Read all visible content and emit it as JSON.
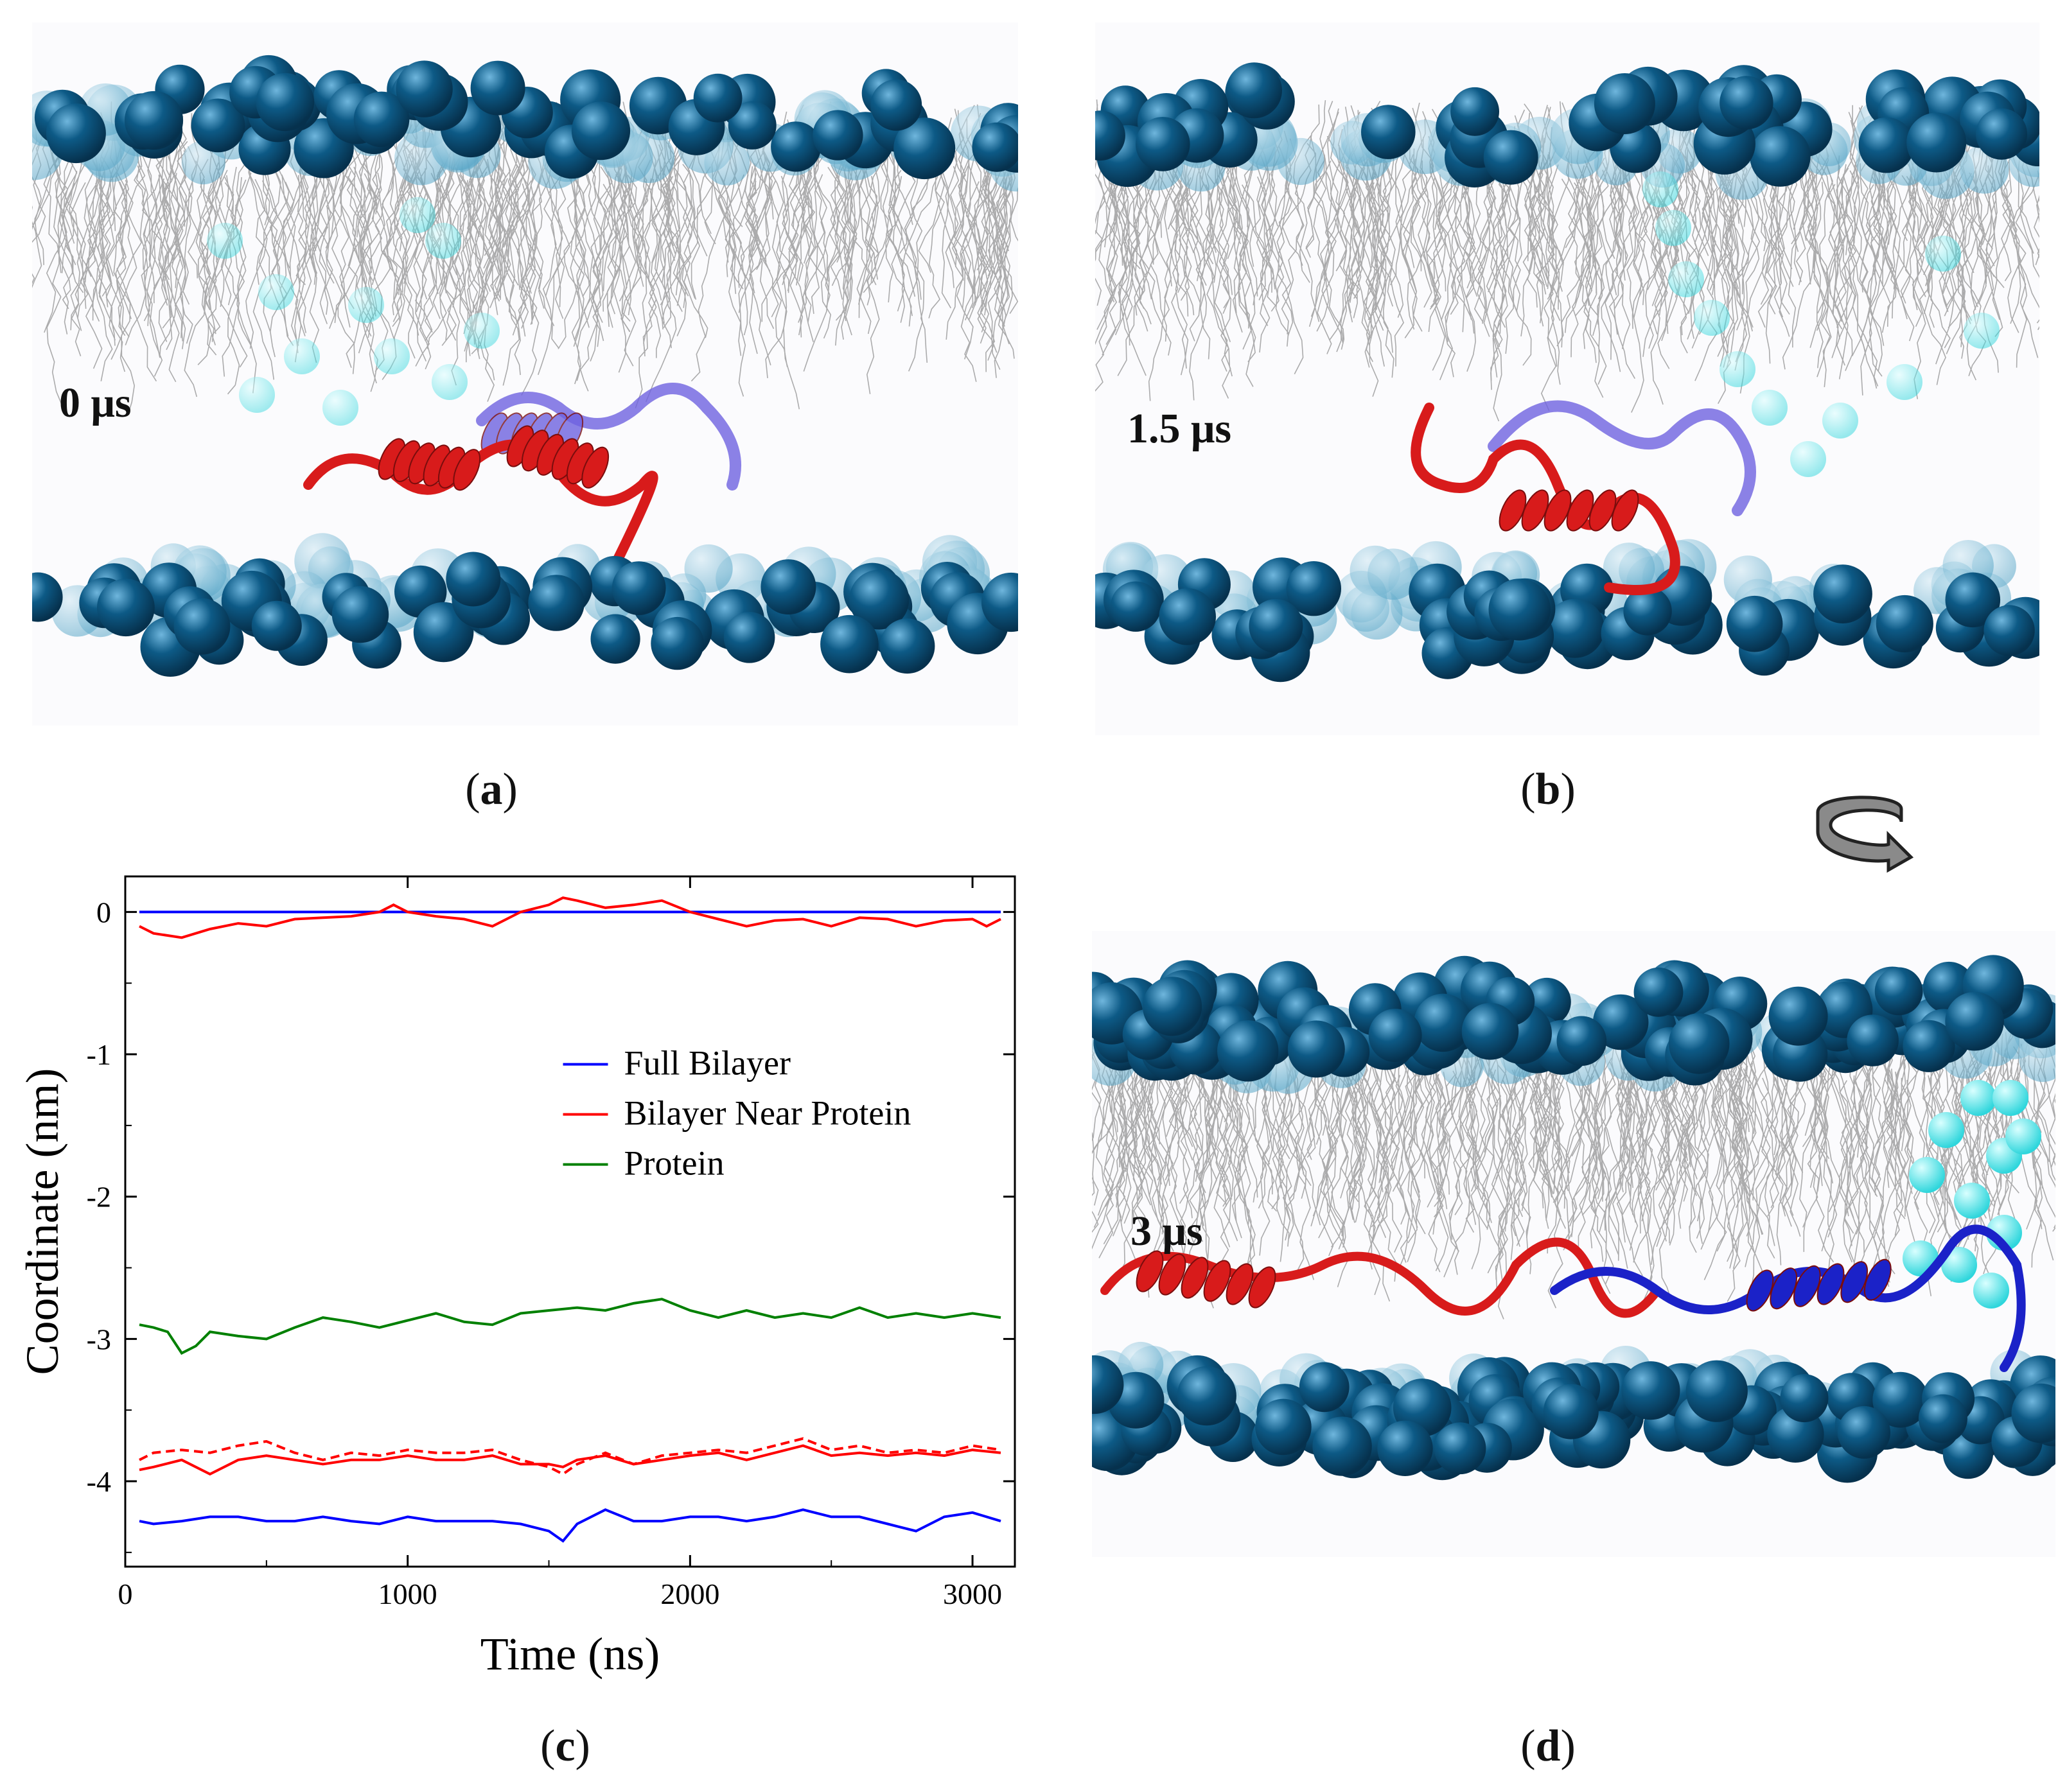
{
  "panels": {
    "a": {
      "caption_open": "(",
      "caption_letter": "a",
      "caption_close": ")",
      "time_label": "0 μs"
    },
    "b": {
      "caption_open": "(",
      "caption_letter": "b",
      "caption_close": ")",
      "time_label": "1.5 μs"
    },
    "c": {
      "caption_open": "(",
      "caption_letter": "c",
      "caption_close": ")"
    },
    "d": {
      "caption_open": "(",
      "caption_letter": "d",
      "caption_close": ")",
      "time_label": "3 μs"
    }
  },
  "colors": {
    "head_dark": "#0d5a86",
    "head_light": "#5aa7c8",
    "water": "#2fd6dc",
    "protein_red": "#d81b1b",
    "protein_blue": "#1b22c8",
    "protein_blue_light": "#6f63e0",
    "lipid_tail": "#8a8a8a"
  },
  "chart_data": {
    "type": "line",
    "xlabel": "Time (ns)",
    "ylabel": "Coordinate (nm)",
    "xlim": [
      0,
      3150
    ],
    "ylim": [
      -4.6,
      0.25
    ],
    "xticks": [
      0,
      1000,
      2000,
      3000
    ],
    "yticks": [
      0,
      -1,
      -2,
      -3,
      -4
    ],
    "xtick_labels": [
      "0",
      "1000",
      "2000",
      "3000"
    ],
    "ytick_labels": [
      "0",
      "-1",
      "-2",
      "-3",
      "-4"
    ],
    "legend_position": "center-right",
    "legend": [
      {
        "label": "Full Bilayer",
        "color": "#0000ff"
      },
      {
        "label": "Bilayer Near Protein",
        "color": "#ff0000"
      },
      {
        "label": "Protein",
        "color": "#008000"
      }
    ],
    "series": [
      {
        "name": "Full Bilayer",
        "color": "#0000ff",
        "style": "solid",
        "x": [
          50,
          3100
        ],
        "y": [
          0,
          0
        ]
      },
      {
        "name": "Bilayer Near Protein",
        "color": "#ff0000",
        "style": "solid",
        "x": [
          50,
          100,
          200,
          300,
          400,
          500,
          600,
          700,
          800,
          900,
          950,
          1000,
          1100,
          1200,
          1300,
          1400,
          1500,
          1550,
          1600,
          1700,
          1800,
          1900,
          2000,
          2100,
          2200,
          2300,
          2400,
          2500,
          2600,
          2700,
          2800,
          2900,
          3000,
          3050,
          3100
        ],
        "y": [
          -0.1,
          -0.15,
          -0.18,
          -0.12,
          -0.08,
          -0.1,
          -0.05,
          -0.04,
          -0.03,
          0.0,
          0.05,
          0.0,
          -0.03,
          -0.05,
          -0.1,
          0.0,
          0.05,
          0.1,
          0.08,
          0.03,
          0.05,
          0.08,
          0.0,
          -0.05,
          -0.1,
          -0.06,
          -0.05,
          -0.1,
          -0.04,
          -0.05,
          -0.1,
          -0.06,
          -0.05,
          -0.1,
          -0.05
        ]
      },
      {
        "name": "Protein",
        "color": "#008000",
        "style": "solid",
        "x": [
          50,
          100,
          150,
          200,
          250,
          300,
          400,
          500,
          600,
          700,
          800,
          900,
          1000,
          1100,
          1200,
          1300,
          1400,
          1500,
          1600,
          1700,
          1800,
          1900,
          2000,
          2100,
          2200,
          2300,
          2400,
          2500,
          2600,
          2700,
          2800,
          2900,
          3000,
          3100
        ],
        "y": [
          -2.9,
          -2.92,
          -2.95,
          -3.1,
          -3.05,
          -2.95,
          -2.98,
          -3.0,
          -2.92,
          -2.85,
          -2.88,
          -2.92,
          -2.87,
          -2.82,
          -2.88,
          -2.9,
          -2.82,
          -2.8,
          -2.78,
          -2.8,
          -2.75,
          -2.72,
          -2.8,
          -2.85,
          -2.8,
          -2.85,
          -2.82,
          -2.85,
          -2.78,
          -2.85,
          -2.82,
          -2.85,
          -2.82,
          -2.85
        ]
      },
      {
        "name": "Bilayer Near Protein (dashed)",
        "color": "#ff0000",
        "style": "dashed",
        "x": [
          50,
          100,
          200,
          300,
          400,
          500,
          600,
          700,
          800,
          900,
          1000,
          1100,
          1200,
          1300,
          1400,
          1500,
          1550,
          1600,
          1700,
          1800,
          1900,
          2000,
          2100,
          2200,
          2300,
          2400,
          2500,
          2600,
          2700,
          2800,
          2900,
          3000,
          3100
        ],
        "y": [
          -3.85,
          -3.8,
          -3.78,
          -3.8,
          -3.75,
          -3.72,
          -3.8,
          -3.85,
          -3.8,
          -3.82,
          -3.78,
          -3.8,
          -3.8,
          -3.78,
          -3.85,
          -3.9,
          -3.95,
          -3.88,
          -3.8,
          -3.88,
          -3.82,
          -3.8,
          -3.78,
          -3.8,
          -3.75,
          -3.7,
          -3.78,
          -3.75,
          -3.8,
          -3.78,
          -3.8,
          -3.75,
          -3.78
        ]
      },
      {
        "name": "Bilayer Near Protein (lower leaflet)",
        "color": "#ff0000",
        "style": "solid",
        "x": [
          50,
          100,
          200,
          300,
          400,
          500,
          600,
          700,
          800,
          900,
          1000,
          1100,
          1200,
          1300,
          1400,
          1500,
          1550,
          1600,
          1700,
          1800,
          1900,
          2000,
          2100,
          2200,
          2300,
          2400,
          2500,
          2600,
          2700,
          2800,
          2900,
          3000,
          3100
        ],
        "y": [
          -3.92,
          -3.9,
          -3.85,
          -3.95,
          -3.85,
          -3.82,
          -3.85,
          -3.88,
          -3.85,
          -3.85,
          -3.82,
          -3.85,
          -3.85,
          -3.82,
          -3.88,
          -3.88,
          -3.9,
          -3.85,
          -3.82,
          -3.88,
          -3.85,
          -3.82,
          -3.8,
          -3.85,
          -3.8,
          -3.75,
          -3.82,
          -3.8,
          -3.82,
          -3.8,
          -3.82,
          -3.78,
          -3.8
        ]
      },
      {
        "name": "Full Bilayer (lower leaflet)",
        "color": "#0000ff",
        "style": "solid",
        "x": [
          50,
          100,
          200,
          300,
          400,
          500,
          600,
          700,
          800,
          900,
          1000,
          1100,
          1200,
          1300,
          1400,
          1500,
          1550,
          1600,
          1700,
          1800,
          1900,
          2000,
          2100,
          2200,
          2300,
          2400,
          2500,
          2600,
          2700,
          2800,
          2900,
          3000,
          3100
        ],
        "y": [
          -4.28,
          -4.3,
          -4.28,
          -4.25,
          -4.25,
          -4.28,
          -4.28,
          -4.25,
          -4.28,
          -4.3,
          -4.25,
          -4.28,
          -4.28,
          -4.28,
          -4.3,
          -4.35,
          -4.42,
          -4.3,
          -4.2,
          -4.28,
          -4.28,
          -4.25,
          -4.25,
          -4.28,
          -4.25,
          -4.2,
          -4.25,
          -4.25,
          -4.3,
          -4.35,
          -4.25,
          -4.22,
          -4.28
        ]
      }
    ]
  }
}
